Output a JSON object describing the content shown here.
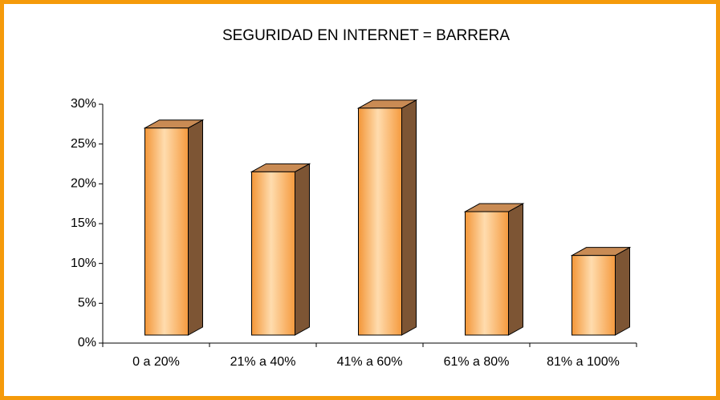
{
  "chart_data": {
    "type": "bar3d",
    "title": "SEGURIDAD EN INTERNET = BARRERA",
    "categories": [
      "0 a 20%",
      "21% a 40%",
      "41% a 60%",
      "61% a 80%",
      "81% a 100%"
    ],
    "values": [
      26,
      20.5,
      28.5,
      15.5,
      10
    ],
    "color": "#f9a54f",
    "ylim": [
      0,
      30
    ],
    "yticks": [
      {
        "value": 0,
        "label": "0%"
      },
      {
        "value": 5,
        "label": "5%"
      },
      {
        "value": 10,
        "label": "10%"
      },
      {
        "value": 15,
        "label": "15%"
      },
      {
        "value": 20,
        "label": "20%"
      },
      {
        "value": 25,
        "label": "25%"
      },
      {
        "value": 30,
        "label": "30%"
      }
    ],
    "grid": false
  }
}
